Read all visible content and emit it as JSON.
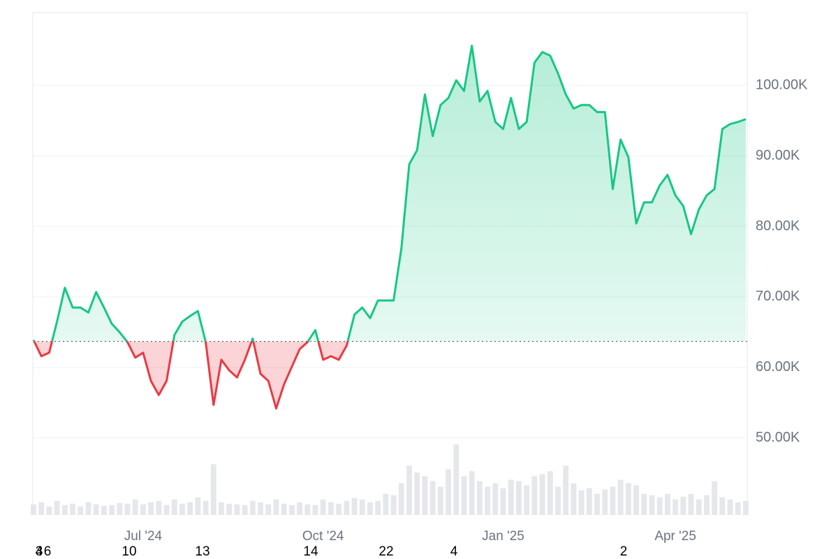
{
  "chart_data": {
    "type": "line",
    "categories": [
      null,
      null,
      null,
      null,
      null,
      null,
      null,
      null,
      null,
      null,
      null,
      null,
      null,
      null,
      "Jul '24",
      null,
      null,
      null,
      null,
      null,
      null,
      null,
      null,
      null,
      null,
      null,
      null,
      null,
      null,
      null,
      null,
      null,
      null,
      null,
      null,
      null,
      null,
      "Oct '24",
      null,
      null,
      null,
      null,
      null,
      null,
      null,
      null,
      null,
      null,
      null,
      null,
      null,
      null,
      null,
      null,
      null,
      null,
      null,
      null,
      null,
      null,
      "Jan '25",
      null,
      null,
      null,
      null,
      null,
      null,
      null,
      null,
      null,
      null,
      null,
      null,
      null,
      null,
      null,
      null,
      null,
      null,
      null,
      null,
      null,
      "Apr '25",
      null,
      null,
      null,
      null,
      null,
      null,
      null,
      null,
      null
    ],
    "values": [
      63900,
      61600,
      62100,
      66500,
      71300,
      68500,
      68500,
      67800,
      70700,
      68500,
      66200,
      65000,
      63600,
      61400,
      62100,
      58100,
      56100,
      58100,
      64600,
      66500,
      67300,
      68000,
      63600,
      54700,
      61100,
      59600,
      58600,
      61100,
      64100,
      59100,
      58100,
      54200,
      57600,
      60100,
      62600,
      63600,
      65300,
      61100,
      61600,
      61100,
      63100,
      67500,
      68500,
      67000,
      69500,
      69500,
      69500,
      76900,
      88800,
      90800,
      98700,
      92800,
      97200,
      98200,
      100700,
      99200,
      105600,
      97700,
      99200,
      94800,
      93800,
      98200,
      93800,
      94800,
      103200,
      104700,
      104200,
      101700,
      98700,
      96700,
      97200,
      97200,
      96200,
      96200,
      85300,
      92300,
      89800,
      80400,
      83400,
      83400,
      85800,
      87300,
      84400,
      82900,
      78900,
      82400,
      84400,
      85300,
      93800,
      94500,
      94800,
      95200
    ],
    "volume": [
      15,
      18,
      12,
      20,
      14,
      16,
      12,
      18,
      15,
      13,
      14,
      17,
      16,
      22,
      15,
      18,
      20,
      14,
      22,
      16,
      18,
      25,
      20,
      72,
      18,
      16,
      15,
      14,
      20,
      18,
      15,
      22,
      16,
      14,
      18,
      15,
      14,
      22,
      18,
      16,
      20,
      24,
      22,
      18,
      20,
      30,
      28,
      45,
      70,
      60,
      55,
      48,
      40,
      65,
      100,
      55,
      62,
      48,
      40,
      45,
      38,
      50,
      48,
      42,
      55,
      58,
      62,
      40,
      70,
      45,
      35,
      38,
      30,
      36,
      40,
      50,
      45,
      42,
      30,
      28,
      25,
      30,
      22,
      26,
      30,
      22,
      28,
      48,
      25,
      22,
      18,
      20
    ],
    "volume_lim": [
      0,
      100
    ],
    "baseline": 63700,
    "up_color": "#16c784",
    "down_color": "#ea3943",
    "volume_color": "#e5e7eb",
    "ylim": [
      39100,
      110300
    ],
    "yticks": [
      {
        "value": 50000,
        "label": "50.00K"
      },
      {
        "value": 60000,
        "label": "60.00K"
      },
      {
        "value": 70000,
        "label": "70.00K"
      },
      {
        "value": 80000,
        "label": "80.00K"
      },
      {
        "value": 90000,
        "label": "90.00K"
      },
      {
        "value": 100000,
        "label": "100.00K"
      }
    ],
    "grid": true,
    "bottom_labels": [
      "3",
      "4",
      "6",
      "10",
      "13",
      "14",
      "22",
      "4",
      "2"
    ]
  }
}
